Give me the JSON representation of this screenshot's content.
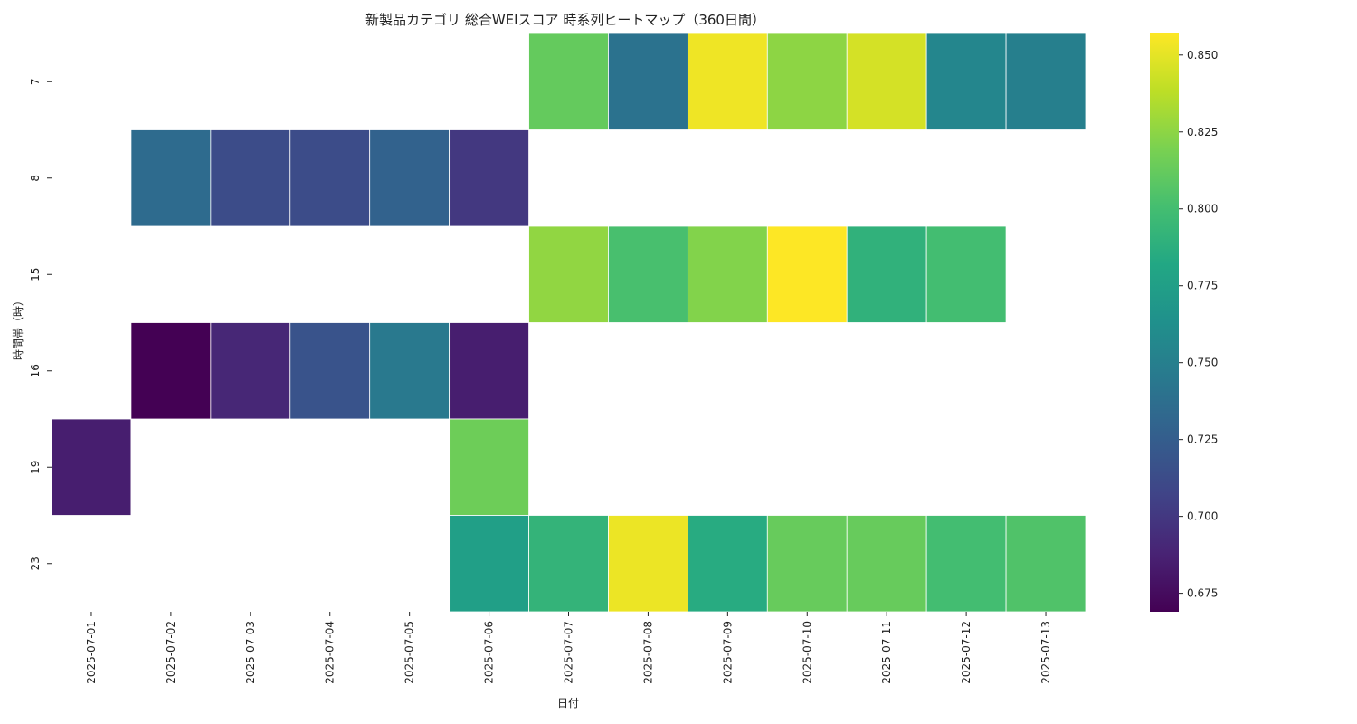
{
  "chart_data": {
    "type": "heatmap",
    "title": "新製品カテゴリ 総合WEIスコア 時系列ヒートマップ（360日間）",
    "xlabel": "日付",
    "ylabel": "時間帯（時）",
    "x_categories": [
      "2025-07-01",
      "2025-07-02",
      "2025-07-03",
      "2025-07-04",
      "2025-07-05",
      "2025-07-06",
      "2025-07-07",
      "2025-07-08",
      "2025-07-09",
      "2025-07-10",
      "2025-07-11",
      "2025-07-12",
      "2025-07-13"
    ],
    "y_categories": [
      "7",
      "8",
      "15",
      "16",
      "19",
      "23"
    ],
    "values": [
      [
        null,
        null,
        null,
        null,
        null,
        null,
        0.812,
        0.74,
        0.853,
        0.825,
        0.845,
        0.755,
        0.75
      ],
      [
        null,
        0.735,
        0.713,
        0.713,
        0.728,
        0.7,
        null,
        null,
        null,
        null,
        null,
        null,
        null
      ],
      [
        null,
        null,
        null,
        null,
        null,
        null,
        0.826,
        0.802,
        0.822,
        0.857,
        0.79,
        0.8,
        null
      ],
      [
        null,
        0.669,
        0.69,
        0.718,
        0.745,
        0.685,
        null,
        null,
        null,
        null,
        null,
        null,
        null
      ],
      [
        0.685,
        null,
        null,
        null,
        null,
        0.815,
        null,
        null,
        null,
        null,
        null,
        null,
        null
      ],
      [
        null,
        null,
        null,
        null,
        null,
        0.775,
        0.792,
        0.852,
        0.785,
        0.813,
        0.813,
        0.8,
        0.805
      ]
    ],
    "colorscale": "viridis",
    "colorbar": {
      "min": 0.669,
      "max": 0.857,
      "ticks": [
        0.675,
        0.7,
        0.725,
        0.75,
        0.775,
        0.8,
        0.825,
        0.85
      ],
      "tick_labels": [
        "0.675",
        "0.700",
        "0.725",
        "0.750",
        "0.775",
        "0.800",
        "0.825",
        "0.850"
      ]
    },
    "missing_color": "#ffffff",
    "grid": false,
    "legend": "colorbar-right"
  }
}
